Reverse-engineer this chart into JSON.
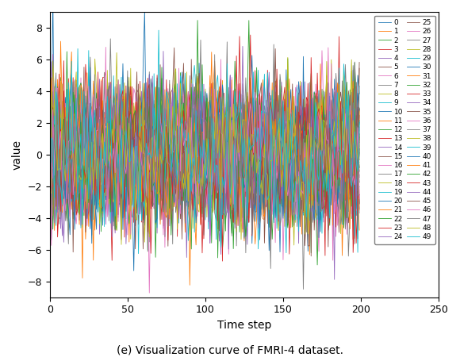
{
  "title": "(e) Visualization curve of FMRI-4 dataset.",
  "xlabel": "Time step",
  "ylabel": "value",
  "n_series": 50,
  "n_steps": 200,
  "ylim": [
    -9,
    9
  ],
  "xlim": [
    0,
    250
  ],
  "yticks": [
    -8,
    -6,
    -4,
    -2,
    0,
    2,
    4,
    6,
    8
  ],
  "xticks": [
    0,
    50,
    100,
    150,
    200,
    250
  ],
  "seed": 42,
  "figsize": [
    5.8,
    4.5
  ],
  "dpi": 100
}
